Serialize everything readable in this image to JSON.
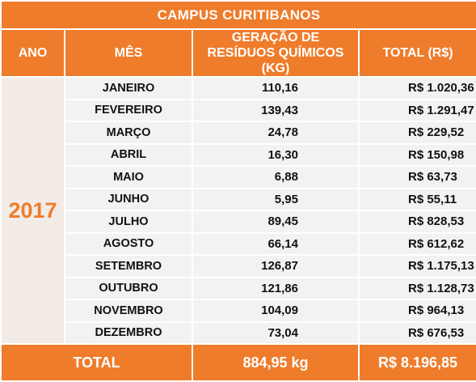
{
  "title": "CAMPUS CURITIBANOS",
  "headers": {
    "ano": "ANO",
    "mes": "MÊS",
    "geracao_line1": "GERAÇÃO DE",
    "geracao_line2": "RESÍDUOS QUÍMICOS (KG)",
    "total": "TOTAL (R$)"
  },
  "year": "2017",
  "rows": [
    {
      "month": "JANEIRO",
      "kg": "110,16",
      "total": "R$ 1.020,36"
    },
    {
      "month": "FEVEREIRO",
      "kg": "139,43",
      "total": "R$ 1.291,47"
    },
    {
      "month": "MARÇO",
      "kg": "24,78",
      "total": "R$ 229,52"
    },
    {
      "month": "ABRIL",
      "kg": "16,30",
      "total": "R$ 150,98"
    },
    {
      "month": "MAIO",
      "kg": "6,88",
      "total": "R$ 63,73"
    },
    {
      "month": "JUNHO",
      "kg": "5,95",
      "total": "R$ 55,11"
    },
    {
      "month": "JULHO",
      "kg": "89,45",
      "total": "R$ 828,53"
    },
    {
      "month": "AGOSTO",
      "kg": "66,14",
      "total": "R$ 612,62"
    },
    {
      "month": "SETEMBRO",
      "kg": "126,87",
      "total": "R$ 1.175,13"
    },
    {
      "month": "OUTUBRO",
      "kg": "121,86",
      "total": "R$ 1.128,73"
    },
    {
      "month": "NOVEMBRO",
      "kg": "104,09",
      "total": "R$ 964,13"
    },
    {
      "month": "DEZEMBRO",
      "kg": "73,04",
      "total": "R$ 676,53"
    }
  ],
  "footer": {
    "label": "TOTAL",
    "kg": "884,95 kg",
    "total": "R$ 8.196,85"
  },
  "colors": {
    "accent": "#ee7c2b",
    "row_bg": "#f2f2f2",
    "year_bg": "#f2ebe6"
  }
}
